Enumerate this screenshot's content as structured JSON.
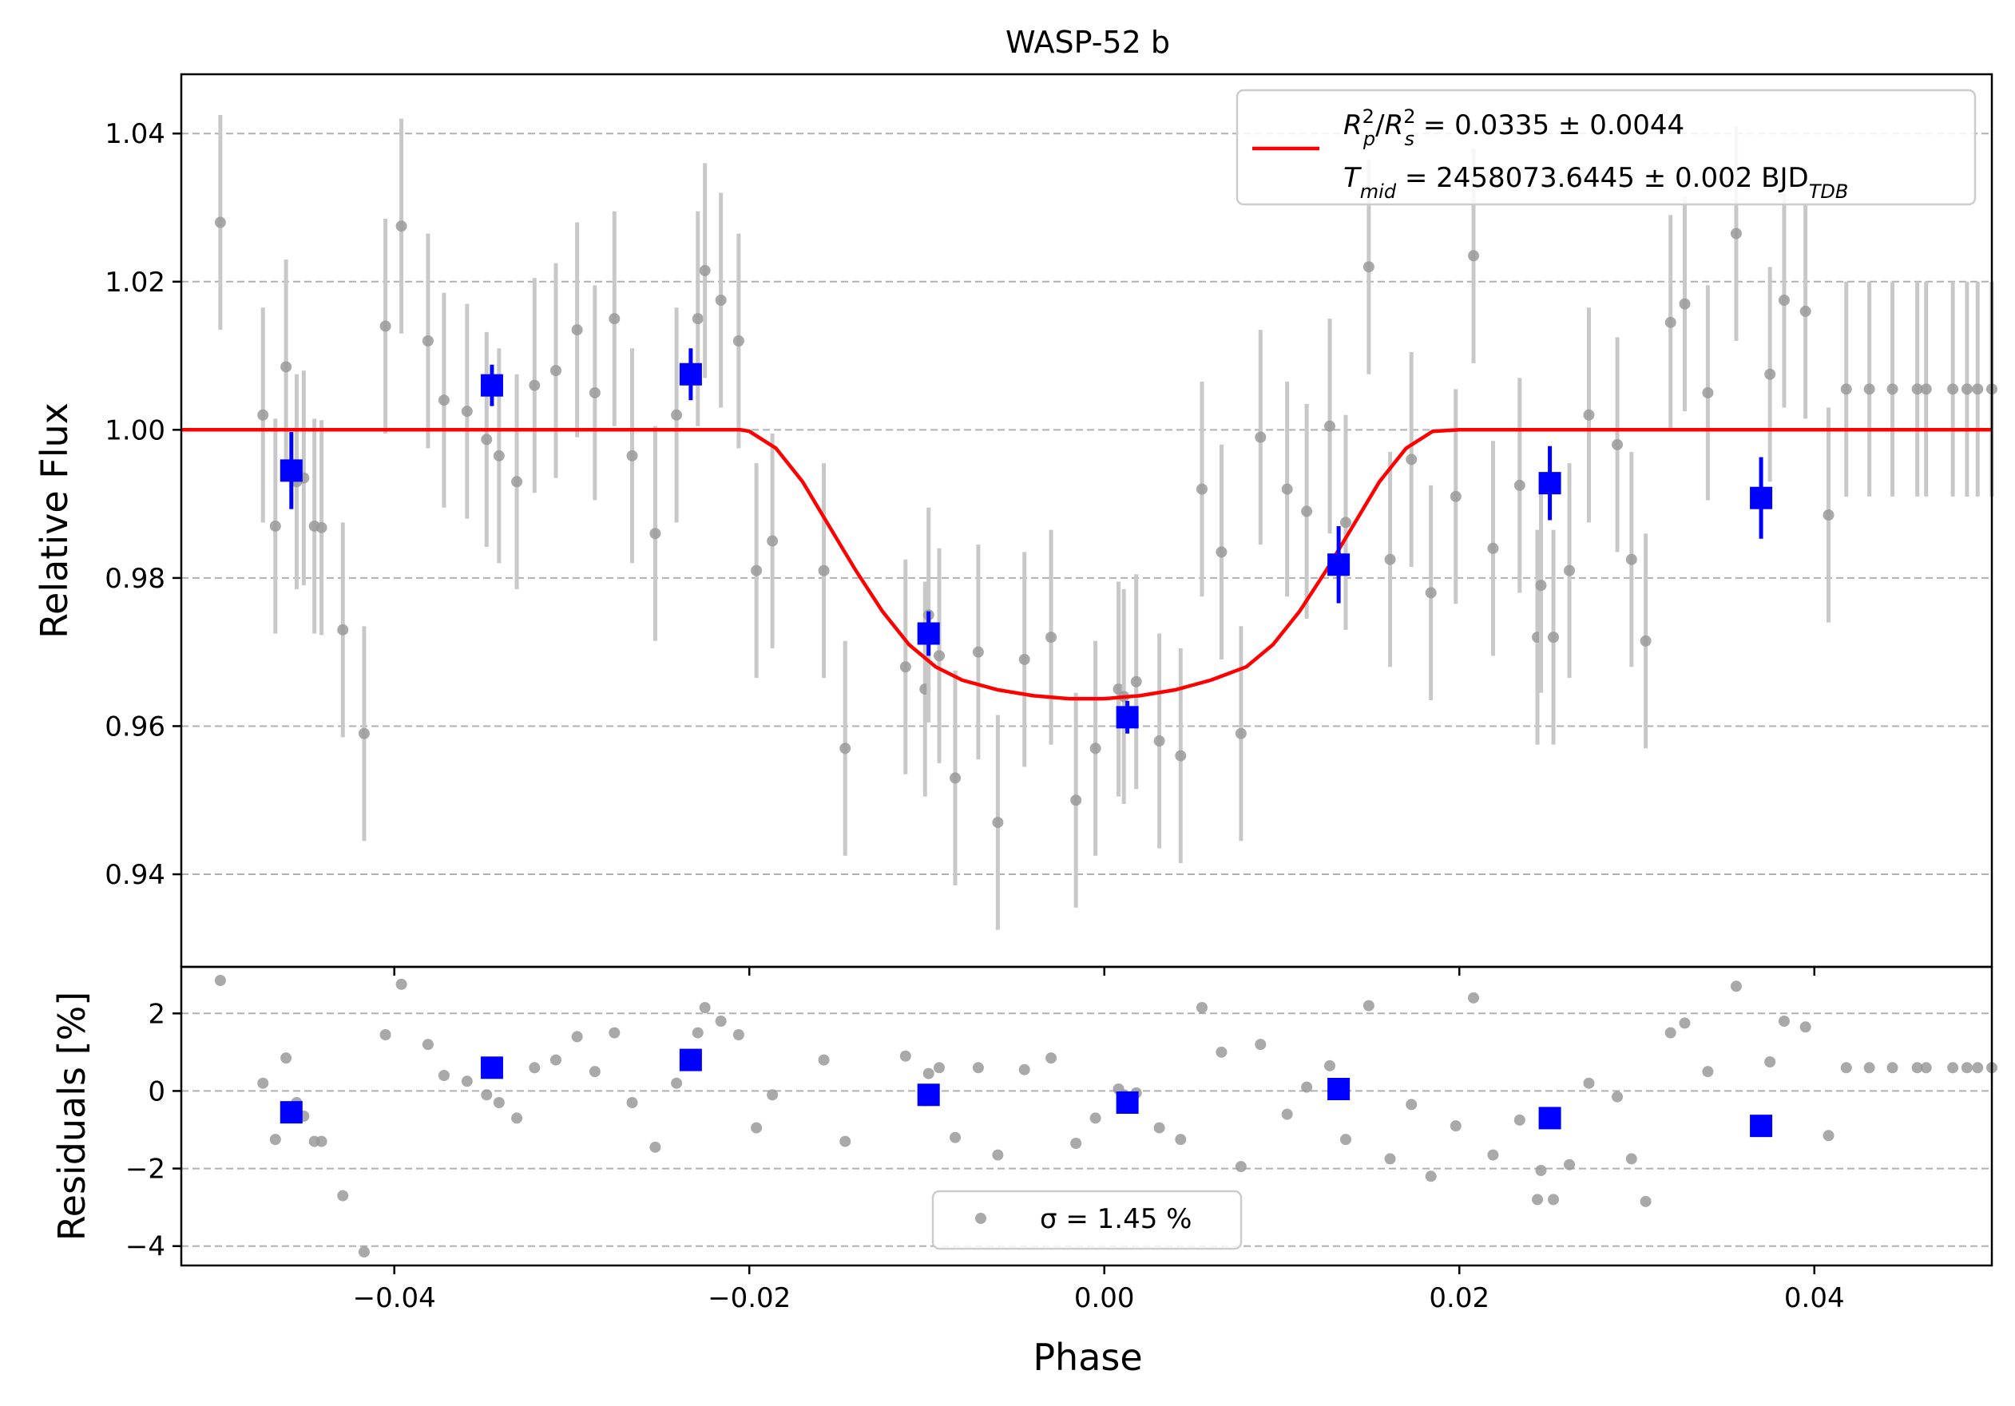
{
  "chart_data": [
    {
      "type": "scatter",
      "title": "WASP-52 b",
      "xlabel": "",
      "ylabel": "Relative Flux",
      "xlim": [
        -0.052,
        0.05
      ],
      "ylim": [
        0.9275,
        1.048
      ],
      "yticks": [
        0.94,
        0.96,
        0.98,
        1.0,
        1.02,
        1.04
      ],
      "ytick_labels": [
        "0.94",
        "0.96",
        "0.98",
        "1.00",
        "1.02",
        "1.04"
      ],
      "grid": "y-dashed",
      "legend": {
        "placement": "top-right",
        "line1": "R²p/R²s = 0.0335 ± 0.0044",
        "line2": "Tmid = 2458073.6445 ± 0.002 BJDTDB"
      },
      "model": {
        "name": "transit model",
        "color": "#ff0000",
        "x": [
          -0.052,
          -0.0205,
          -0.02,
          -0.0185,
          -0.017,
          -0.0155,
          -0.014,
          -0.0125,
          -0.011,
          -0.0095,
          -0.008,
          -0.006,
          -0.004,
          -0.002,
          0.0,
          0.002,
          0.004,
          0.006,
          0.008,
          0.0095,
          0.011,
          0.0125,
          0.014,
          0.0155,
          0.017,
          0.0185,
          0.02,
          0.0205,
          0.05
        ],
        "y": [
          1.0,
          1.0,
          0.9998,
          0.9975,
          0.993,
          0.987,
          0.981,
          0.9755,
          0.971,
          0.968,
          0.9662,
          0.9649,
          0.9641,
          0.9637,
          0.9637,
          0.9641,
          0.9649,
          0.9662,
          0.968,
          0.971,
          0.9755,
          0.981,
          0.987,
          0.993,
          0.9975,
          0.9998,
          1.0,
          1.0,
          1.0
        ]
      },
      "series": [
        {
          "name": "data",
          "color": "#9a9a9a",
          "x": [
            -0.0521,
            -0.0498,
            -0.0474,
            -0.0467,
            -0.0461,
            -0.0455,
            -0.0451,
            -0.0445,
            -0.0441,
            -0.0429,
            -0.0417,
            -0.0405,
            -0.0396,
            -0.0381,
            -0.0372,
            -0.0359,
            -0.0348,
            -0.0341,
            -0.0331,
            -0.0321,
            -0.0309,
            -0.0297,
            -0.0287,
            -0.0276,
            -0.0266,
            -0.0253,
            -0.0241,
            -0.0229,
            -0.0225,
            -0.0216,
            -0.0206,
            -0.0196,
            -0.0187,
            -0.0158,
            -0.0146,
            -0.0112,
            -0.0101,
            -0.0099,
            -0.0093,
            -0.0084,
            -0.0071,
            -0.006,
            -0.0045,
            -0.003,
            -0.0016,
            -0.0005,
            0.0008,
            0.0011,
            0.0018,
            0.0031,
            0.0043,
            0.0055,
            0.0066,
            0.0077,
            0.0088,
            0.0103,
            0.0114,
            0.0127,
            0.0136,
            0.0149,
            0.0161,
            0.0173,
            0.0184,
            0.0198,
            0.0208,
            0.0219,
            0.0234,
            0.0244,
            0.0246,
            0.0253,
            0.0262,
            0.0273,
            0.0289,
            0.0297,
            0.0305,
            0.0319,
            0.0327,
            0.034,
            0.0356,
            0.0375,
            0.0383,
            0.0395,
            0.0408,
            0.0418,
            0.0431,
            0.0444,
            0.0458,
            0.0463,
            0.0478,
            0.0486,
            0.0492,
            0.05
          ],
          "y": [
            0.998,
            1.028,
            1.002,
            0.987,
            1.0085,
            0.993,
            0.9935,
            0.987,
            0.9868,
            0.973,
            0.959,
            1.014,
            1.0275,
            1.012,
            1.004,
            1.0025,
            0.9987,
            0.9965,
            0.993,
            1.006,
            1.008,
            1.0135,
            1.005,
            1.015,
            0.9965,
            0.986,
            1.002,
            1.015,
            1.0215,
            1.0175,
            1.012,
            0.981,
            0.985,
            0.981,
            0.957,
            0.968,
            0.965,
            0.975,
            0.9695,
            0.953,
            0.97,
            0.947,
            0.969,
            0.972,
            0.95,
            0.957,
            0.965,
            0.964,
            0.966,
            0.958,
            0.956,
            0.992,
            0.9835,
            0.959,
            0.999,
            0.992,
            0.989,
            1.0005,
            0.9875,
            1.022,
            0.9825,
            0.996,
            0.978,
            0.991,
            1.0235,
            0.984,
            0.9925,
            0.972,
            0.979,
            0.972,
            0.981,
            1.002,
            0.998,
            0.9825,
            0.9715,
            1.0145,
            1.017,
            1.005,
            1.0265,
            1.0075,
            1.0175,
            1.016,
            0.9885,
            1.0055,
            1.0055,
            1.0055,
            1.0055,
            1.0055,
            1.0055,
            1.0055,
            1.0055,
            1.0055
          ],
          "yerr": 0.0145
        },
        {
          "name": "binned",
          "color": "#0000ff",
          "x": [
            -0.0458,
            -0.0345,
            -0.0233,
            -0.0099,
            0.0013,
            0.0132,
            0.0251,
            0.037
          ],
          "y": [
            0.9945,
            1.006,
            1.0075,
            0.9725,
            0.9612,
            0.9818,
            0.9928,
            0.9908
          ],
          "yerr": [
            0.0052,
            0.0028,
            0.0035,
            0.003,
            0.0022,
            0.0052,
            0.005,
            0.0055
          ]
        }
      ]
    },
    {
      "type": "scatter",
      "title": "",
      "xlabel": "Phase",
      "ylabel": "Residuals [%]",
      "xlim": [
        -0.052,
        0.05
      ],
      "ylim": [
        -4.5,
        3.2
      ],
      "yticks": [
        -4,
        -2,
        0,
        2
      ],
      "ytick_labels": [
        "−4",
        "−2",
        "0",
        "2"
      ],
      "xticks": [
        -0.04,
        -0.02,
        0.0,
        0.02,
        0.04
      ],
      "xtick_labels": [
        "−0.04",
        "−0.02",
        "0.00",
        "0.02",
        "0.04"
      ],
      "grid": "y-dashed",
      "legend": {
        "placement": "bottom-center",
        "label": "σ = 1.45 %"
      },
      "series": [
        {
          "name": "residuals",
          "color": "#9a9a9a",
          "x": [
            -0.0521,
            -0.0498,
            -0.0474,
            -0.0467,
            -0.0461,
            -0.0455,
            -0.0451,
            -0.0445,
            -0.0441,
            -0.0429,
            -0.0417,
            -0.0405,
            -0.0396,
            -0.0381,
            -0.0372,
            -0.0359,
            -0.0348,
            -0.0341,
            -0.0331,
            -0.0321,
            -0.0309,
            -0.0297,
            -0.0287,
            -0.0276,
            -0.0266,
            -0.0253,
            -0.0241,
            -0.0229,
            -0.0225,
            -0.0216,
            -0.0206,
            -0.0196,
            -0.0187,
            -0.0158,
            -0.0146,
            -0.0112,
            -0.0101,
            -0.0099,
            -0.0093,
            -0.0084,
            -0.0071,
            -0.006,
            -0.0045,
            -0.003,
            -0.0016,
            -0.0005,
            0.0008,
            0.0011,
            0.0018,
            0.0031,
            0.0043,
            0.0055,
            0.0066,
            0.0077,
            0.0088,
            0.0103,
            0.0114,
            0.0127,
            0.0136,
            0.0149,
            0.0161,
            0.0173,
            0.0184,
            0.0198,
            0.0208,
            0.0219,
            0.0234,
            0.0244,
            0.0246,
            0.0253,
            0.0262,
            0.0273,
            0.0289,
            0.0297,
            0.0305,
            0.0319,
            0.0327,
            0.034,
            0.0356,
            0.0375,
            0.0383,
            0.0395,
            0.0408,
            0.0418,
            0.0431,
            0.0444,
            0.0458,
            0.0463,
            0.0478,
            0.0486,
            0.0492,
            0.05
          ],
          "y": [
            -0.15,
            2.85,
            0.2,
            -1.25,
            0.85,
            -0.3,
            -0.65,
            -1.3,
            -1.3,
            -2.7,
            -4.15,
            1.45,
            2.75,
            1.2,
            0.4,
            0.25,
            -0.1,
            -0.3,
            -0.7,
            0.6,
            0.8,
            1.4,
            0.5,
            1.5,
            -0.3,
            -1.45,
            0.2,
            1.5,
            2.15,
            1.8,
            1.45,
            -0.95,
            -0.1,
            0.8,
            -1.3,
            0.9,
            -0.25,
            0.45,
            0.6,
            -1.2,
            0.6,
            -1.65,
            0.55,
            0.85,
            -1.35,
            -0.7,
            0.05,
            -0.1,
            -0.05,
            -0.95,
            -1.25,
            2.15,
            1.0,
            -1.95,
            1.2,
            -0.6,
            0.1,
            0.65,
            -1.25,
            2.2,
            -1.75,
            -0.35,
            -2.2,
            -0.9,
            2.4,
            -1.65,
            -0.75,
            -2.8,
            -2.05,
            -2.8,
            -1.9,
            0.2,
            -0.15,
            -1.75,
            -2.85,
            1.5,
            1.75,
            0.5,
            2.7,
            0.75,
            1.8,
            1.65,
            -1.15,
            0.6,
            0.6,
            0.6,
            0.6,
            0.6,
            0.6,
            0.6,
            0.6,
            0.6
          ]
        },
        {
          "name": "binned residuals",
          "color": "#0000ff",
          "x": [
            -0.0458,
            -0.0345,
            -0.0233,
            -0.0099,
            0.0013,
            0.0132,
            0.0251,
            0.037
          ],
          "y": [
            -0.55,
            0.6,
            0.8,
            -0.1,
            -0.3,
            0.05,
            -0.7,
            -0.9
          ]
        }
      ]
    }
  ]
}
